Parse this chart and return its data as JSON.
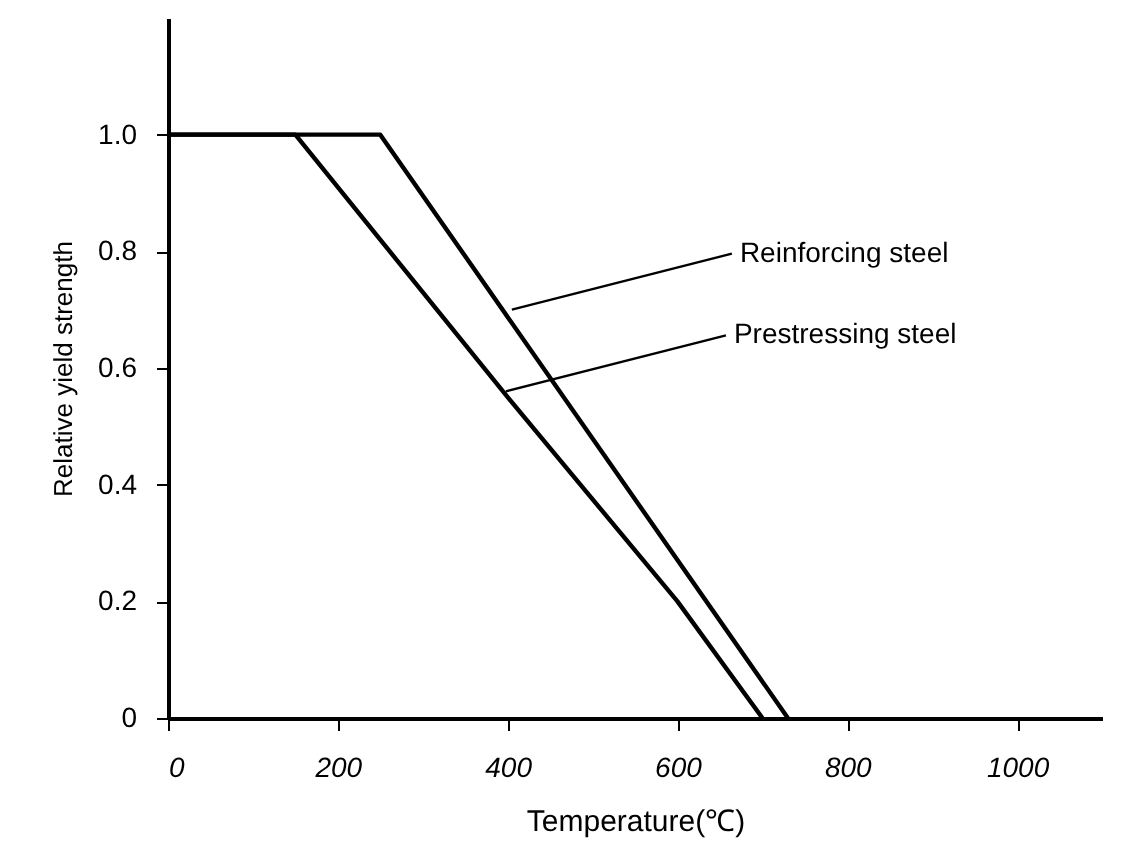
{
  "chart_data": {
    "type": "line",
    "xlabel": "Temperature(℃)",
    "ylabel": "Relative yield strength",
    "xlim": [
      0,
      1100
    ],
    "ylim": [
      0,
      1.2
    ],
    "xticks": [
      0,
      200,
      400,
      600,
      800,
      1000
    ],
    "yticks": [
      0,
      {
        "value": 0.2,
        "label": "0.2"
      },
      {
        "value": 0.4,
        "label": "0.4"
      },
      {
        "value": 0.6,
        "label": "0.6"
      },
      {
        "value": 0.8,
        "label": "0.8"
      },
      {
        "value": 1,
        "label": "1.0"
      }
    ],
    "grid": false,
    "marker": "none",
    "line_style": "solid",
    "series": [
      {
        "color": "#000000",
        "x": [
          0,
          250,
          730
        ],
        "values": [
          1,
          1,
          0
        ]
      },
      {
        "color": "#000000",
        "x": [
          0,
          150,
          400,
          600,
          700
        ],
        "values": [
          1,
          1,
          0.55,
          0.2,
          0
        ]
      }
    ],
    "annotations": [
      {
        "text": "Reinforcing steel",
        "x": 405,
        "y": 0.7
      },
      {
        "text": "Prestressing steel",
        "x": 398,
        "y": 0.56
      }
    ]
  }
}
